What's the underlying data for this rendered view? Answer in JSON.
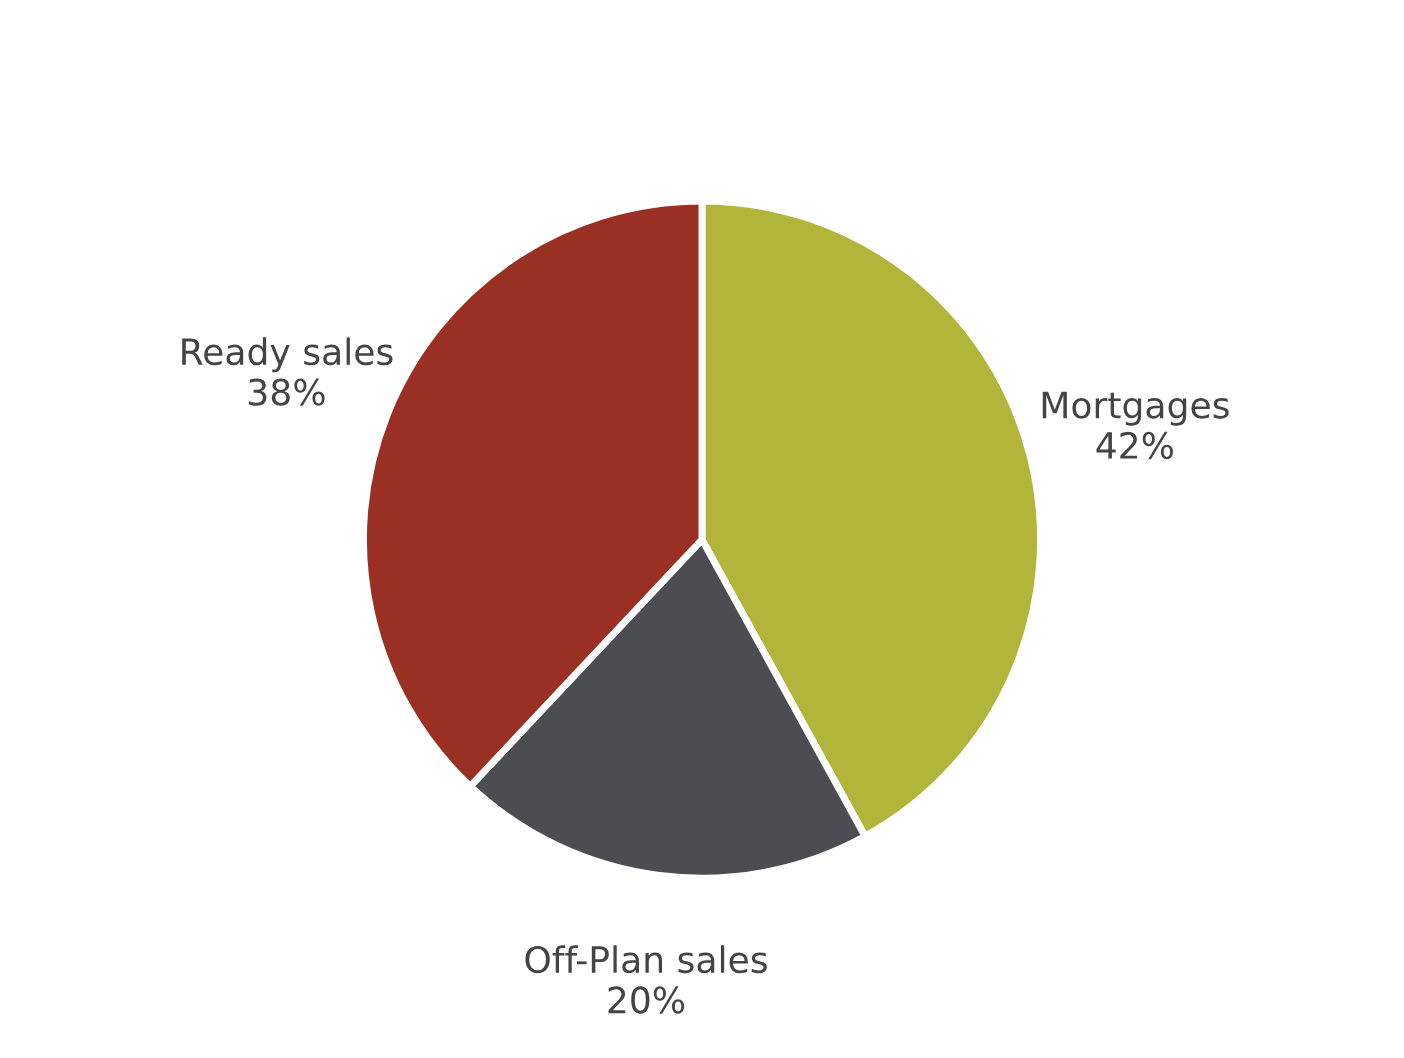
{
  "chart_data": {
    "type": "pie",
    "categories": [
      "Mortgages",
      "Off-Plan sales",
      "Ready sales"
    ],
    "values": [
      42,
      20,
      38
    ],
    "colors": [
      "#b1b53a",
      "#4b4d52",
      "#9a3024"
    ],
    "value_labels": [
      "42%",
      "20%",
      "38%"
    ],
    "legend": false
  }
}
